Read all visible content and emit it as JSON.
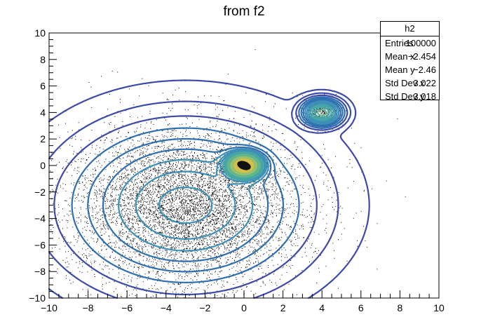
{
  "chart_data": {
    "type": "scatter",
    "title": "from f2",
    "xlim": [
      -10,
      10
    ],
    "ylim": [
      -10,
      10
    ],
    "x_ticks": [
      -10,
      -8,
      -6,
      -4,
      -2,
      0,
      2,
      4,
      6,
      8,
      10
    ],
    "y_ticks": [
      -10,
      -8,
      -6,
      -4,
      -2,
      0,
      2,
      4,
      6,
      8,
      10
    ],
    "grid": false,
    "components": [
      {
        "center": [
          -3.0,
          -3.0
        ],
        "sigma": [
          3.0,
          3.0
        ],
        "weight": 0.8
      },
      {
        "center": [
          0.0,
          0.0
        ],
        "sigma": [
          0.5,
          0.5
        ],
        "weight": 0.15
      },
      {
        "center": [
          4.0,
          4.0
        ],
        "sigma": [
          0.5,
          0.5
        ],
        "weight": 0.05
      }
    ],
    "contour_colors": [
      "#3d4ba8",
      "#2f6fb0",
      "#3e8fb7",
      "#46a6a6",
      "#62b58c",
      "#9bc06b",
      "#d6c04a",
      "#f6d43b"
    ]
  },
  "stats_box": {
    "name": "h2",
    "rows": [
      {
        "label": "Entries",
        "value": "100000"
      },
      {
        "label": "Mean x",
        "value": "−2.454"
      },
      {
        "label": "Mean y",
        "value": "−2.46"
      },
      {
        "label": "Std Dev x",
        "value": "3.022"
      },
      {
        "label": "Std Dev y",
        "value": "3.018"
      }
    ]
  }
}
